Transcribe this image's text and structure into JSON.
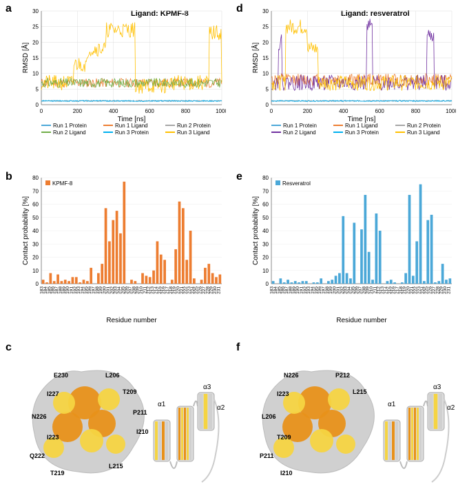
{
  "panels": {
    "a": "a",
    "b": "b",
    "c": "c",
    "d": "d",
    "e": "e",
    "f": "f"
  },
  "ligand_a": "Ligand: KPMF-8",
  "ligand_d": "Ligand: resveratrol",
  "rmsd": {
    "ylabel": "RMSD [Å]",
    "xlabel": "Time [ns]",
    "ylim": [
      0,
      30
    ],
    "ytick_step": 5,
    "xlim": [
      0,
      1000
    ],
    "xtick_step": 200,
    "colors": {
      "r1p": "#4ba8d8",
      "r1l": "#ed7d31",
      "r2p": "#a5a5a5",
      "r2l": "#7030a0",
      "r3p": "#00b0f0",
      "r3l": "#ffc000",
      "r3l_a": "#70ad47"
    },
    "legend": [
      "Run 1 Protein",
      "Run 1 Ligand",
      "Run 2 Protein",
      "Run 2 Ligand",
      "Run 3 Protein",
      "Run 3 Ligand"
    ]
  },
  "contact": {
    "ylabel": "Contact probability [%]",
    "xlabel": "Residue number",
    "ylim": [
      0,
      80
    ],
    "ytick_step": 10,
    "xstart": 183,
    "xend": 231,
    "kpmf8_color": "#ed7d31",
    "resv_color": "#4ba8d8",
    "kpmf8_label": "KPMF-8",
    "resv_label": "Resveratrol",
    "kpmf8_values": [
      3,
      1,
      8,
      2,
      7,
      2,
      3,
      2,
      5,
      5,
      1,
      3,
      2,
      12,
      0,
      8,
      15,
      57,
      32,
      48,
      55,
      38,
      77,
      0,
      3,
      2,
      0,
      8,
      6,
      5,
      10,
      32,
      22,
      18,
      0,
      3,
      26,
      62,
      57,
      18,
      40,
      4,
      0,
      3,
      12,
      15,
      8,
      5,
      7
    ],
    "resv_values": [
      2,
      0,
      4,
      1,
      3,
      1,
      2,
      1,
      2,
      2,
      0,
      1,
      1,
      4,
      0,
      2,
      3,
      6,
      8,
      51,
      8,
      4,
      46,
      0,
      41,
      67,
      24,
      3,
      53,
      40,
      0,
      2,
      3,
      1,
      0,
      1,
      8,
      67,
      6,
      32,
      75,
      2,
      48,
      52,
      1,
      2,
      15,
      3,
      4
    ]
  },
  "residues_c": [
    "E230",
    "I227",
    "N226",
    "I223",
    "Q222",
    "T219",
    "L206",
    "T209",
    "P211",
    "I210",
    "L215"
  ],
  "residues_f": [
    "N226",
    "I223",
    "L206",
    "T209",
    "P211",
    "I210",
    "P212",
    "L215"
  ],
  "helix_labels": [
    "α1",
    "α2",
    "α3"
  ],
  "surface_colors": {
    "high": "#e8911a",
    "mid": "#f5d442",
    "low": "#d0d0d0"
  }
}
